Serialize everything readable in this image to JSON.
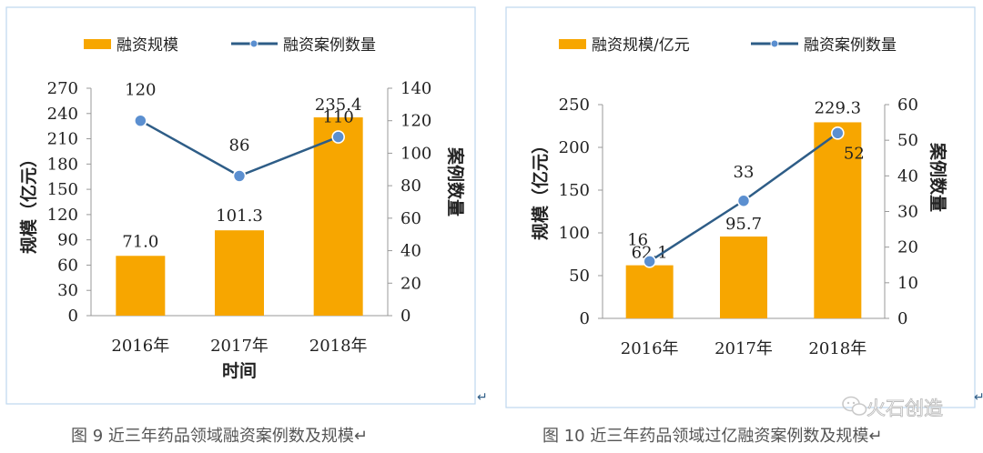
{
  "colors": {
    "bar": "#F7A600",
    "line": "#2E5D87",
    "marker": "#5B8FD0",
    "axis": "#999999",
    "text": "#222222",
    "frame": "#BFD7EE"
  },
  "watermark": {
    "text": "火石创造",
    "icon": "wechat-icon"
  },
  "return_marks": [
    "↵",
    "↵"
  ],
  "chart_data": [
    {
      "type": "bar",
      "title": "",
      "caption": "图 9   近三年药品领域融资案例数及规模↵",
      "legend": {
        "bar_label": "融资规模",
        "line_label": "融资案例数量",
        "position": "top"
      },
      "categories": [
        "2016年",
        "2017年",
        "2018年"
      ],
      "xlabel": "时间",
      "ylabel": "规模（亿元）",
      "y2label": "案例数量",
      "ylim": [
        0,
        270
      ],
      "yticks": [
        "0",
        "30",
        "60",
        "90",
        "120",
        "150",
        "180",
        "210",
        "240",
        "270"
      ],
      "y2lim": [
        0,
        140
      ],
      "y2ticks": [
        "0",
        "20",
        "40",
        "60",
        "80",
        "100",
        "120",
        "140"
      ],
      "series": [
        {
          "name": "融资规模",
          "kind": "bar",
          "values": [
            71.0,
            101.3,
            235.4
          ],
          "labels": [
            "71.0",
            "101.3",
            "235.4"
          ]
        },
        {
          "name": "融资案例数量",
          "kind": "line",
          "axis": "right",
          "values": [
            120,
            86,
            110
          ],
          "labels": [
            "120",
            "86",
            "110"
          ]
        }
      ]
    },
    {
      "type": "bar",
      "title": "",
      "caption": "图 10   近三年药品领域过亿融资案例数及规模↵",
      "legend": {
        "bar_label": "融资规模/亿元",
        "line_label": "融资案例数量",
        "position": "top"
      },
      "categories": [
        "2016年",
        "2017年",
        "2018年"
      ],
      "xlabel": "",
      "ylabel": "规模（亿元）",
      "y2label": "案例数量",
      "ylim": [
        0,
        250
      ],
      "yticks": [
        "0",
        "50",
        "100",
        "150",
        "200",
        "250"
      ],
      "y2lim": [
        0,
        60
      ],
      "y2ticks": [
        "0",
        "10",
        "20",
        "30",
        "40",
        "50",
        "60"
      ],
      "series": [
        {
          "name": "融资规模/亿元",
          "kind": "bar",
          "values": [
            62.1,
            95.7,
            229.3
          ],
          "labels": [
            "62.1",
            "95.7",
            "229.3"
          ]
        },
        {
          "name": "融资案例数量",
          "kind": "line",
          "axis": "right",
          "values": [
            16,
            33,
            52
          ],
          "labels": [
            "16",
            "33",
            "52"
          ]
        }
      ]
    }
  ]
}
